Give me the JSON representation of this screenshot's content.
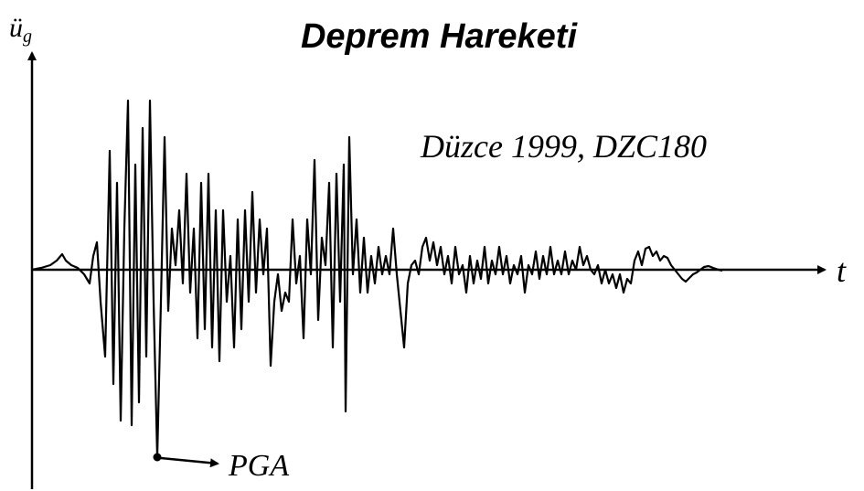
{
  "title": "Deprem Hareketi",
  "y_axis_label": {
    "base": "ü",
    "subscript": "g"
  },
  "x_axis_label": "t",
  "annotation": "Düzce 1999, DZC180",
  "peak_label": "PGA"
}
